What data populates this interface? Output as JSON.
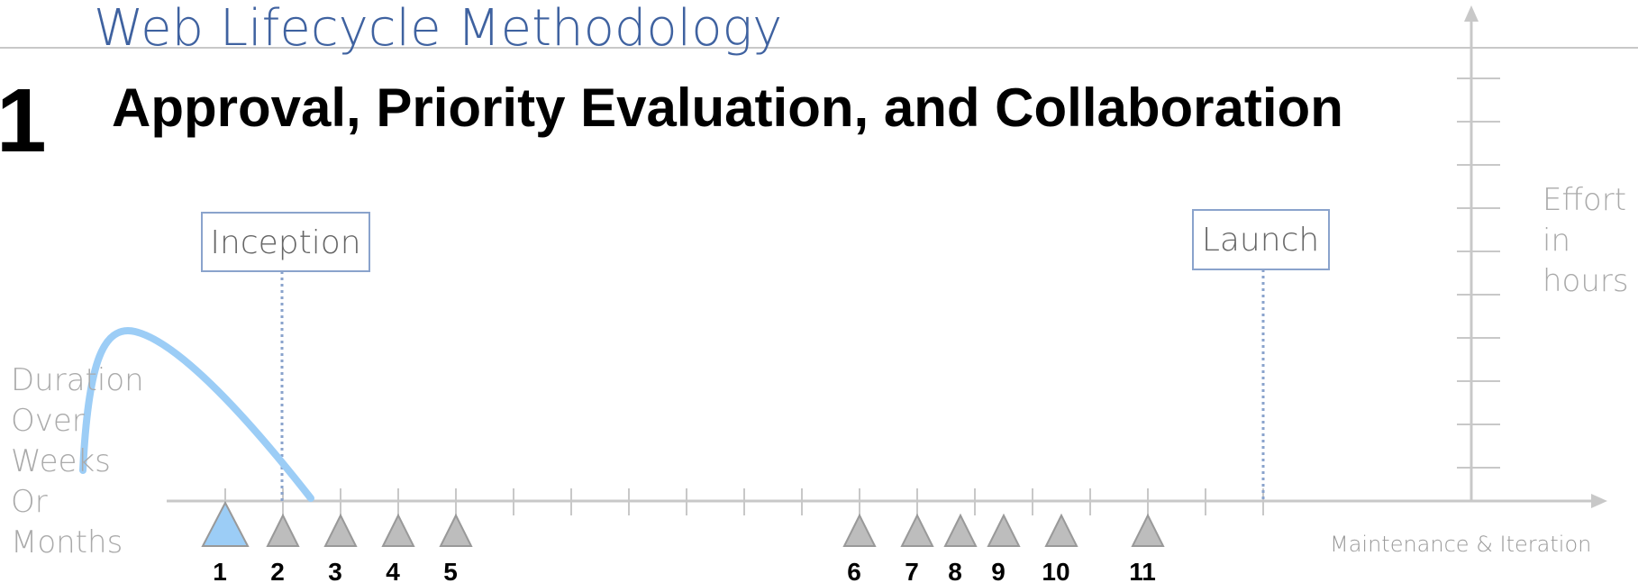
{
  "header": {
    "title": "Web Lifecycle Methodology"
  },
  "step": {
    "number": "1",
    "title": "Approval, Priority Evaluation, and Collaboration"
  },
  "phases": [
    {
      "label": "Inception"
    },
    {
      "label": "Launch"
    }
  ],
  "vertical_axis_label": [
    "Effort",
    "in",
    "hours"
  ],
  "horizontal_axis_label": [
    "Duration",
    "Over",
    "Weeks",
    "Or",
    "Months"
  ],
  "tail_label": "Maintenance & Iteration",
  "milestones": [
    "1",
    "2",
    "3",
    "4",
    "5",
    "6",
    "7",
    "8",
    "9",
    "10",
    "11"
  ]
}
